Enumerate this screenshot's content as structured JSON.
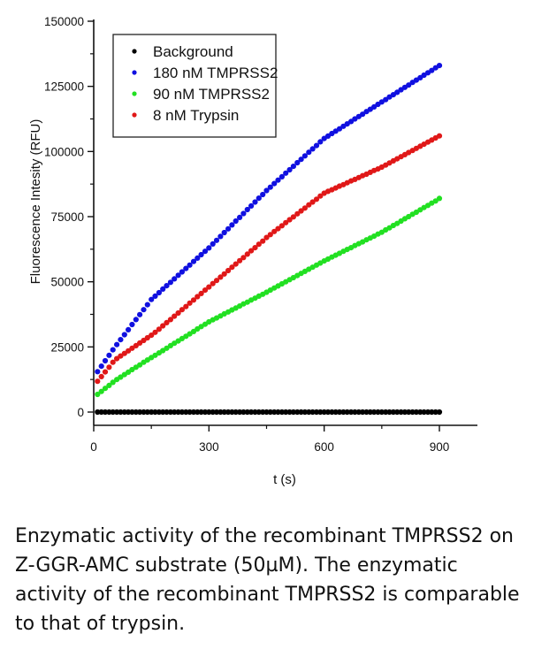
{
  "chart_data": {
    "type": "scatter",
    "title": "",
    "xlabel": "t (s)",
    "ylabel": "Fluorescence Intesity (RFU)",
    "xlim": [
      0,
      1000
    ],
    "ylim": [
      -5000,
      150000
    ],
    "xticks": [
      0,
      300,
      600,
      900
    ],
    "xticks_minor": [
      150,
      450,
      750
    ],
    "yticks": [
      0,
      25000,
      50000,
      75000,
      100000,
      125000,
      150000
    ],
    "yticks_minor": [
      12500,
      37500,
      62500,
      87500,
      112500,
      137500
    ],
    "xtick_labels": [
      "0",
      "300",
      "600",
      "900"
    ],
    "ytick_labels": [
      "0",
      "25000",
      "50000",
      "75000",
      "100000",
      "125000",
      "150000"
    ],
    "grid": false,
    "legend_position": "top-left",
    "x": [
      10,
      20,
      30,
      40,
      50,
      60,
      70,
      80,
      90,
      100,
      110,
      120,
      130,
      140,
      150,
      160,
      170,
      180,
      190,
      200,
      210,
      220,
      230,
      240,
      250,
      260,
      270,
      280,
      290,
      300,
      310,
      320,
      330,
      340,
      350,
      360,
      370,
      380,
      390,
      400,
      410,
      420,
      430,
      440,
      450,
      460,
      470,
      480,
      490,
      500,
      510,
      520,
      530,
      540,
      550,
      560,
      570,
      580,
      590,
      600,
      610,
      620,
      630,
      640,
      650,
      660,
      670,
      680,
      690,
      700,
      710,
      720,
      730,
      740,
      750,
      760,
      770,
      780,
      790,
      800,
      810,
      820,
      830,
      840,
      850,
      860,
      870,
      880,
      890,
      900
    ],
    "series": [
      {
        "name": "Background",
        "color": "#000000",
        "values": [
          0,
          0,
          0,
          0,
          0,
          0,
          0,
          0,
          0,
          0,
          0,
          0,
          0,
          0,
          0,
          0,
          0,
          0,
          0,
          0,
          0,
          0,
          0,
          0,
          0,
          0,
          0,
          0,
          0,
          0,
          0,
          0,
          0,
          0,
          0,
          0,
          0,
          0,
          0,
          0,
          0,
          0,
          0,
          0,
          0,
          0,
          0,
          0,
          0,
          0,
          0,
          0,
          0,
          0,
          0,
          0,
          0,
          0,
          0,
          0,
          0,
          0,
          0,
          0,
          0,
          0,
          0,
          0,
          0,
          0,
          0,
          0,
          0,
          0,
          0,
          0,
          0,
          0,
          0,
          0,
          0,
          0,
          0,
          0,
          0,
          0,
          0,
          0,
          0,
          0
        ]
      },
      {
        "name": "180 nM TMPRSS2",
        "color": "#1010e0",
        "values": [
          15500,
          17600,
          19700,
          21800,
          23900,
          25900,
          27800,
          29700,
          31600,
          33600,
          35500,
          37400,
          39300,
          41200,
          43200,
          44500,
          45800,
          47200,
          48500,
          49800,
          51100,
          52500,
          53800,
          55100,
          56400,
          57800,
          59100,
          60400,
          61700,
          63000,
          64500,
          65900,
          67400,
          68900,
          70300,
          71800,
          73300,
          74700,
          76200,
          77700,
          79100,
          80600,
          82100,
          83500,
          85000,
          86300,
          87700,
          89000,
          90300,
          91700,
          93000,
          94300,
          95700,
          97000,
          98300,
          99700,
          101000,
          102300,
          103700,
          105000,
          105900,
          106900,
          107800,
          108700,
          109700,
          110600,
          111500,
          112500,
          113400,
          114300,
          115300,
          116200,
          117100,
          118100,
          119000,
          119900,
          120900,
          121800,
          122700,
          123700,
          124600,
          125500,
          126500,
          127400,
          128300,
          129300,
          130200,
          131100,
          132100,
          133000
        ]
      },
      {
        "name": "90 nM TMPRSS2",
        "color": "#22e022",
        "values": [
          6800,
          7900,
          9100,
          10200,
          11400,
          12500,
          13400,
          14400,
          15300,
          16300,
          17200,
          18100,
          19100,
          20000,
          20900,
          21800,
          22700,
          23600,
          24500,
          25500,
          26400,
          27300,
          28200,
          29100,
          30000,
          30900,
          31900,
          32800,
          33700,
          34600,
          35400,
          36100,
          36900,
          37700,
          38400,
          39200,
          39900,
          40700,
          41500,
          42200,
          43000,
          43700,
          44500,
          45200,
          46000,
          46800,
          47600,
          48400,
          49200,
          50000,
          50800,
          51600,
          52400,
          53200,
          54000,
          54800,
          55600,
          56400,
          57200,
          58000,
          58700,
          59500,
          60200,
          60900,
          61700,
          62400,
          63100,
          63900,
          64600,
          65300,
          66100,
          66800,
          67500,
          68300,
          69000,
          69900,
          70700,
          71600,
          72400,
          73300,
          74200,
          75000,
          75900,
          76700,
          77600,
          78500,
          79300,
          80200,
          81000,
          82000
        ]
      },
      {
        "name": "8 nM Trypsin",
        "color": "#e01818",
        "values": [
          11800,
          13600,
          15400,
          17200,
          19100,
          20500,
          21500,
          22500,
          23500,
          24500,
          25500,
          26500,
          27500,
          28500,
          29500,
          30600,
          31800,
          33100,
          34300,
          35500,
          36800,
          38000,
          39300,
          40500,
          41800,
          43000,
          44300,
          45500,
          46800,
          48000,
          49300,
          50500,
          51800,
          53000,
          54300,
          55600,
          56800,
          58100,
          59300,
          60600,
          61900,
          63100,
          64400,
          65600,
          67000,
          68100,
          69300,
          70400,
          71500,
          72700,
          73800,
          74900,
          76100,
          77200,
          78300,
          79500,
          80600,
          81700,
          82900,
          84000,
          84700,
          85300,
          86000,
          86700,
          87300,
          88000,
          88700,
          89300,
          90000,
          90700,
          91300,
          92000,
          92700,
          93300,
          94000,
          94800,
          95600,
          96400,
          97200,
          98000,
          98800,
          99600,
          100400,
          101200,
          102000,
          102800,
          103600,
          104400,
          105200,
          106000
        ]
      }
    ]
  },
  "caption": "Enzymatic activity of the recombinant TMPRSS2 on Z-GGR-AMC substrate (50µM). The enzymatic activity of the recombinant TMPRSS2 is comparable to that of trypsin."
}
